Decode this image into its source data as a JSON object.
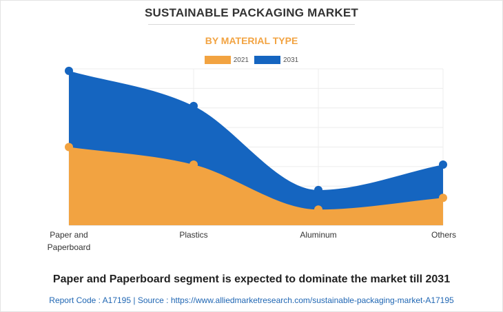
{
  "header": {
    "title": "SUSTAINABLE PACKAGING MARKET",
    "subtitle": "BY MATERIAL TYPE"
  },
  "colors": {
    "subtitle": "#f2a341",
    "series_2021": "#f2a341",
    "series_2031": "#1565c0"
  },
  "footer": {
    "headline": "Paper and Paperboard segment is expected to dominate the market till 2031",
    "source": "Report Code : A17195  |  Source : https://www.alliedmarketresearch.com/sustainable-packaging-market-A17195"
  },
  "chart_data": {
    "type": "area",
    "title": "SUSTAINABLE PACKAGING MARKET",
    "subtitle": "BY MATERIAL TYPE",
    "categories": [
      "Paper and\nPaperboard",
      "Plastics",
      "Aluminum",
      "Others"
    ],
    "series": [
      {
        "name": "2021",
        "values": [
          40,
          31,
          8,
          14
        ],
        "color": "#f2a341"
      },
      {
        "name": "2031",
        "values": [
          79,
          61,
          18,
          31
        ],
        "color": "#1565c0"
      }
    ],
    "ylim": [
      0,
      80
    ],
    "grid": true,
    "legend": "top-center",
    "y_axis_labels_shown": false,
    "stacked": false
  }
}
